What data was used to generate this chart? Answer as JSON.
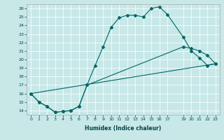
{
  "xlabel": "Humidex (Indice chaleur)",
  "background_color": "#c8e8e8",
  "line_color": "#006666",
  "xlim": [
    -0.5,
    23.5
  ],
  "ylim": [
    13.5,
    26.5
  ],
  "xtick_positions": [
    0,
    1,
    2,
    3,
    4,
    5,
    6,
    7,
    8,
    9,
    10,
    11,
    12,
    13,
    14,
    15,
    16,
    17,
    19,
    20,
    21,
    22,
    23
  ],
  "xtick_labels": [
    "0",
    "1",
    "2",
    "3",
    "4",
    "5",
    "6",
    "7",
    "8",
    "9",
    "10",
    "11",
    "12",
    "13",
    "14",
    "15",
    "16",
    "17",
    "19",
    "20",
    "21",
    "22",
    "23"
  ],
  "yticks": [
    14,
    15,
    16,
    17,
    18,
    19,
    20,
    21,
    22,
    23,
    24,
    25,
    26
  ],
  "series1_x": [
    0,
    1,
    2,
    3,
    4,
    5,
    6,
    7,
    8,
    9,
    10,
    11,
    12,
    13,
    14,
    15,
    16,
    17,
    19,
    20,
    21,
    22,
    23
  ],
  "series1_y": [
    16.0,
    15.0,
    14.5,
    13.8,
    13.9,
    14.0,
    14.5,
    17.0,
    19.3,
    21.5,
    23.8,
    24.9,
    25.2,
    25.2,
    25.0,
    26.0,
    26.2,
    25.3,
    22.6,
    21.0,
    20.2,
    19.3,
    19.5
  ],
  "series2_x": [
    0,
    1,
    2,
    3,
    4,
    5,
    6,
    7,
    19,
    20,
    21,
    22,
    23
  ],
  "series2_y": [
    16.0,
    15.0,
    14.5,
    13.8,
    13.9,
    14.0,
    14.5,
    17.0,
    21.5,
    21.3,
    21.0,
    20.5,
    19.5
  ],
  "series3_x": [
    0,
    23
  ],
  "series3_y": [
    16.0,
    19.5
  ]
}
